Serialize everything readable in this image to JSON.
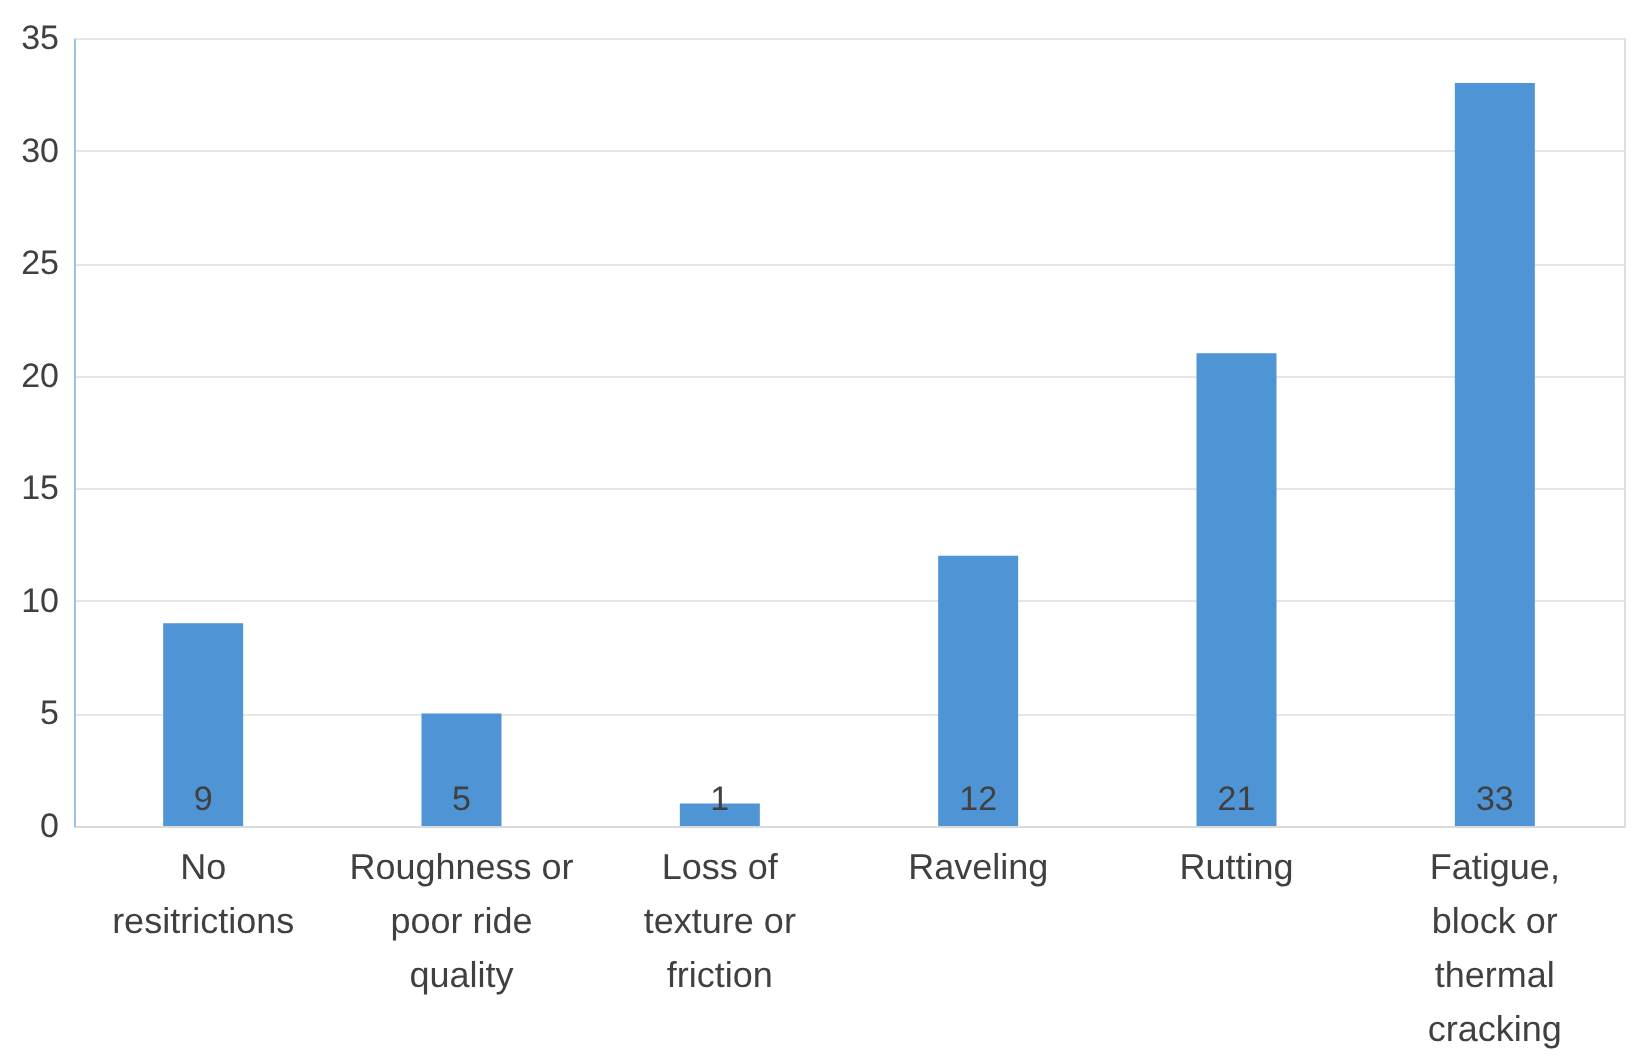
{
  "chart_data": {
    "type": "bar",
    "categories": [
      "No resitrictions",
      "Roughness or poor ride quality",
      "Loss of texture or friction",
      "Raveling",
      "Rutting",
      "Fatigue, block or thermal cracking"
    ],
    "values": [
      9,
      5,
      1,
      12,
      21,
      33
    ],
    "color": "#4f94d4",
    "ylim": [
      0,
      35
    ],
    "yticks": [
      0,
      5,
      10,
      15,
      20,
      25,
      30,
      35
    ],
    "grid": "y",
    "data_labels": true
  }
}
